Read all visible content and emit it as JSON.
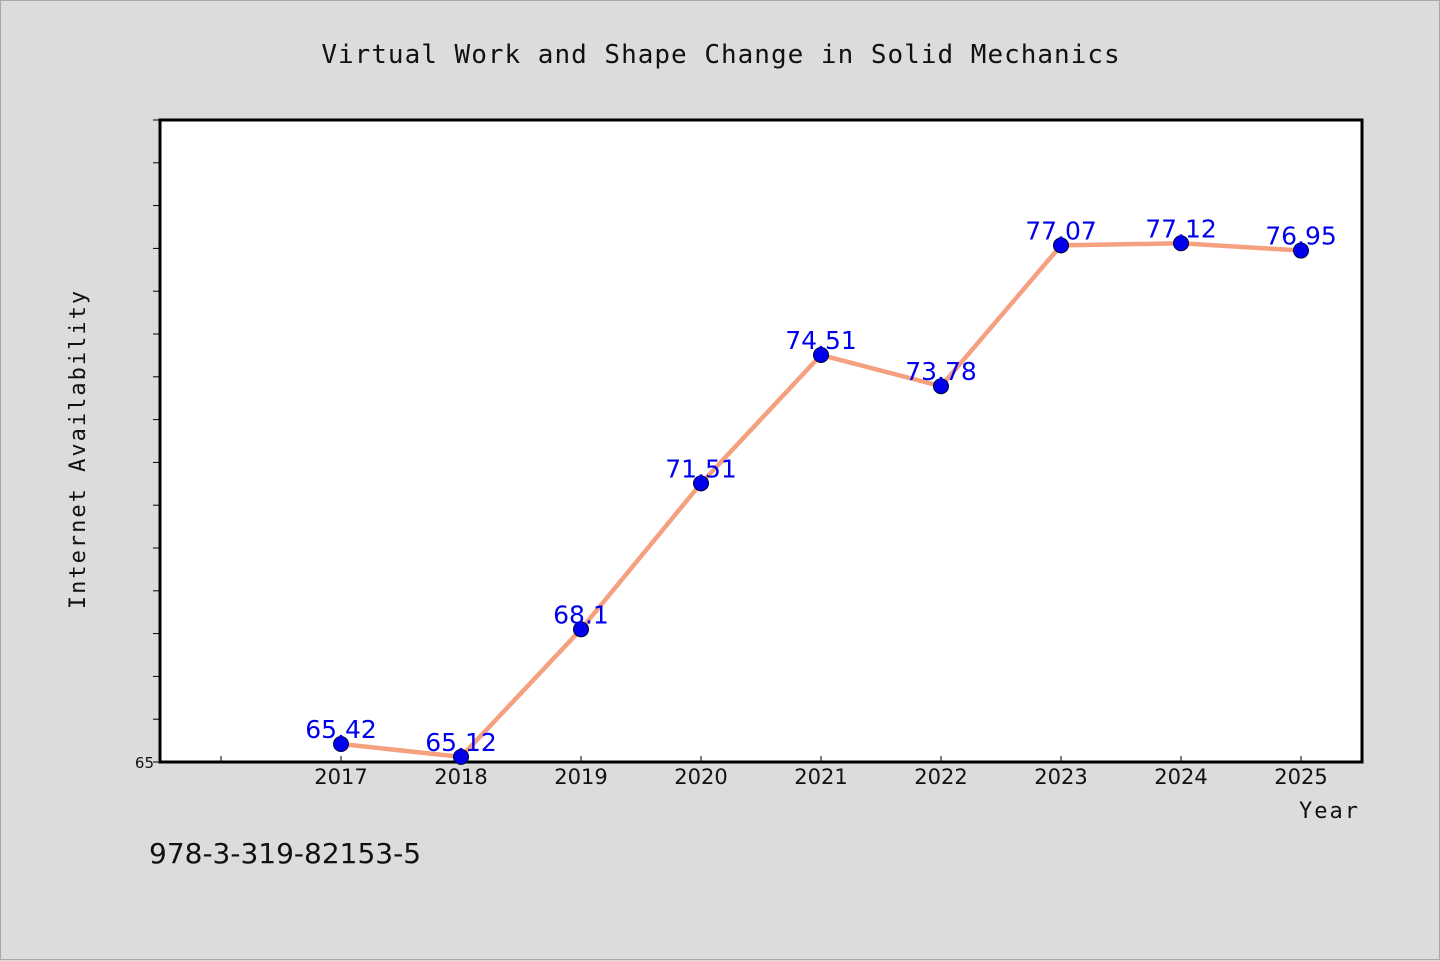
{
  "chart_data": {
    "type": "line",
    "title": "Virtual Work and Shape Change in Solid Mechanics",
    "xlabel": "Year",
    "ylabel": "Internet Availability",
    "categories": [
      "2017",
      "2018",
      "2019",
      "2020",
      "2021",
      "2022",
      "2023",
      "2024",
      "2025"
    ],
    "series": [
      {
        "values": [
          65.42,
          65.12,
          68.1,
          71.51,
          74.51,
          73.78,
          77.07,
          77.12,
          76.95
        ],
        "labels": [
          "65.42",
          "65.12",
          "68.1",
          "71.51",
          "74.51",
          "73.78",
          "77.07",
          "77.12",
          "76.95"
        ]
      }
    ],
    "ylim": [
      65,
      80
    ],
    "yticks": [
      "65"
    ],
    "grid": false,
    "legend": "none",
    "colors": {
      "line": "#f5a07e",
      "marker": "#0000ee",
      "data_label": "#0000ee",
      "background": "#dcdcdc",
      "plot_background": "#ffffff",
      "axes": "#000000"
    }
  },
  "footer": {
    "isbn": "978-3-319-82153-5"
  }
}
